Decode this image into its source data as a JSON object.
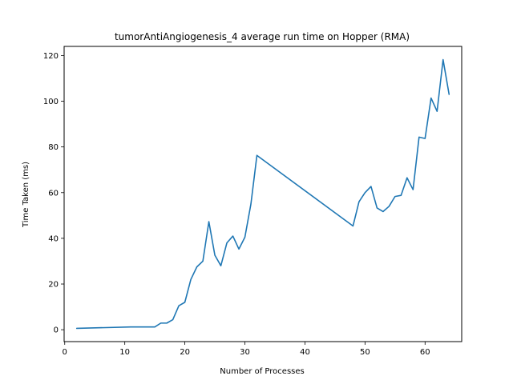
{
  "chart_data": {
    "type": "line",
    "title": "tumorAntiAngiogenesis_4 average run time on Hopper (RMA)",
    "xlabel": "Number of Processes",
    "ylabel": "Time Taken (ms)",
    "xlim": [
      -0.1,
      66.1
    ],
    "ylim": [
      -5.2,
      124.0
    ],
    "xticks": [
      0,
      10,
      20,
      30,
      40,
      50,
      60
    ],
    "yticks": [
      0,
      20,
      40,
      60,
      80,
      100,
      120
    ],
    "grid": false,
    "color": "#1f77b4",
    "series": [
      {
        "x": [
          2,
          11,
          15,
          16,
          17,
          18,
          19,
          20,
          21,
          22,
          23,
          24,
          25,
          26,
          27,
          28,
          29,
          30,
          31,
          32,
          48,
          49,
          50,
          51,
          52,
          53,
          54,
          55,
          56,
          57,
          58,
          59,
          60,
          61,
          62,
          63,
          64
        ],
        "values": [
          0.6,
          1.2,
          1.2,
          2.9,
          2.9,
          4.4,
          10.5,
          12.0,
          22.0,
          27.5,
          30.0,
          47.3,
          32.6,
          28.0,
          38.0,
          41.0,
          35.3,
          40.5,
          55.0,
          76.3,
          45.4,
          56.0,
          60.0,
          62.7,
          53.3,
          51.7,
          54.0,
          58.3,
          58.8,
          66.5,
          61.3,
          84.3,
          83.7,
          101.4,
          95.6,
          118.2,
          103.0
        ]
      }
    ]
  }
}
